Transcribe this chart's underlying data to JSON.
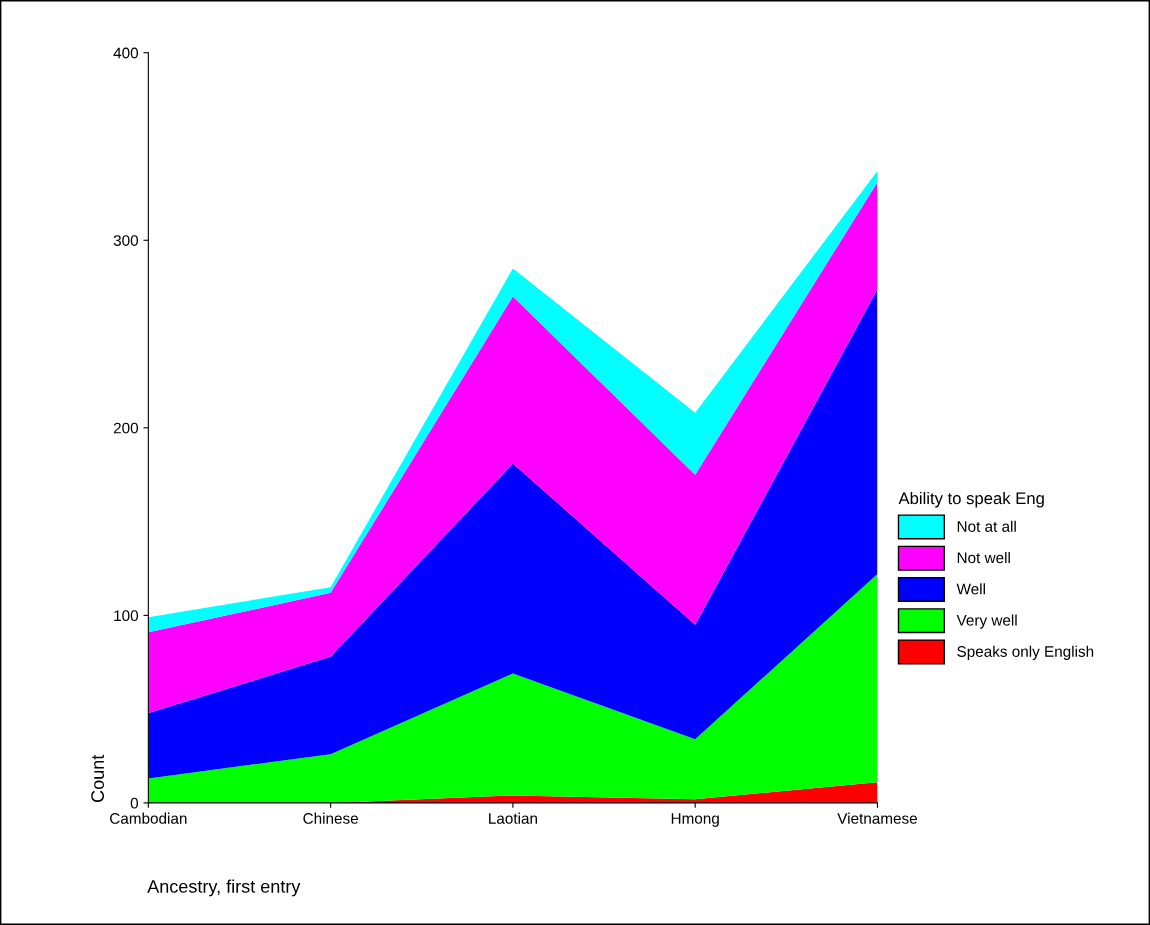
{
  "chart_data": {
    "type": "area",
    "stacked": true,
    "xlabel": "Ancestry, first entry",
    "ylabel": "Count",
    "legend_title": "Ability to speak Eng",
    "legend": "right",
    "categories": [
      "Cambodian",
      "Chinese",
      "Laotian",
      "Hmong",
      "Vietnamese"
    ],
    "ylim": [
      0,
      400
    ],
    "yticks": [
      0,
      100,
      200,
      300,
      400
    ],
    "grid": false,
    "series": [
      {
        "name": "Speaks only English",
        "color": "#ff0000",
        "values": [
          0,
          0,
          4,
          2,
          11
        ]
      },
      {
        "name": "Very well",
        "color": "#00ff00",
        "values": [
          13,
          26,
          65,
          32,
          111
        ]
      },
      {
        "name": "Well",
        "color": "#0000ff",
        "values": [
          35,
          52,
          112,
          61,
          152
        ]
      },
      {
        "name": "Not well",
        "color": "#ff00ff",
        "values": [
          43,
          34,
          89,
          80,
          57
        ]
      },
      {
        "name": "Not at all",
        "color": "#00ffff",
        "values": [
          8,
          3,
          15,
          33,
          6
        ]
      }
    ]
  }
}
